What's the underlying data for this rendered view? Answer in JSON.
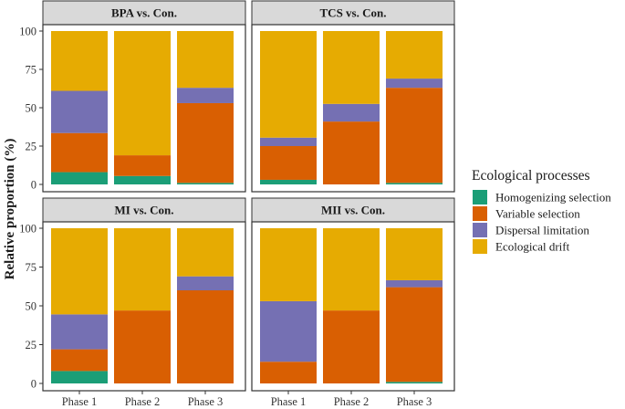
{
  "chart_data": {
    "type": "bar",
    "stacked": true,
    "ylabel": "Relative proportion (%)",
    "ylim": [
      0,
      100
    ],
    "yticks": [
      "0",
      "25",
      "50",
      "75",
      "100"
    ],
    "categories": [
      "Phase 1",
      "Phase 2",
      "Phase 3"
    ],
    "legend": {
      "title": "Ecological processes",
      "placement": "right",
      "entries": [
        {
          "name": "Homogenizing selection",
          "color": "#1b9e77"
        },
        {
          "name": "Variable selection",
          "color": "#d95f02"
        },
        {
          "name": "Dispersal limitation",
          "color": "#7570b3"
        },
        {
          "name": "Ecological drift",
          "color": "#e6ab02"
        }
      ]
    },
    "panels": [
      {
        "title": "BPA vs. Con.",
        "series": [
          {
            "name": "Homogenizing selection",
            "values": [
              8,
              5.5,
              1
            ]
          },
          {
            "name": "Variable selection",
            "values": [
              25.5,
              13.5,
              52
            ]
          },
          {
            "name": "Dispersal limitation",
            "values": [
              27.5,
              0,
              10
            ]
          },
          {
            "name": "Ecological drift",
            "values": [
              39,
              81,
              37
            ]
          }
        ]
      },
      {
        "title": "TCS vs. Con.",
        "series": [
          {
            "name": "Homogenizing selection",
            "values": [
              3,
              0,
              1
            ]
          },
          {
            "name": "Variable selection",
            "values": [
              22,
              41,
              62
            ]
          },
          {
            "name": "Dispersal limitation",
            "values": [
              5.5,
              11.5,
              6
            ]
          },
          {
            "name": "Ecological drift",
            "values": [
              69.5,
              47.5,
              31
            ]
          }
        ]
      },
      {
        "title": "MI vs. Con.",
        "series": [
          {
            "name": "Homogenizing selection",
            "values": [
              8,
              0,
              0
            ]
          },
          {
            "name": "Variable selection",
            "values": [
              14,
              47,
              60
            ]
          },
          {
            "name": "Dispersal limitation",
            "values": [
              22.5,
              0,
              9
            ]
          },
          {
            "name": "Ecological drift",
            "values": [
              55.5,
              53,
              31
            ]
          }
        ]
      },
      {
        "title": "MII vs. Con.",
        "series": [
          {
            "name": "Homogenizing selection",
            "values": [
              0,
              0,
              1
            ]
          },
          {
            "name": "Variable selection",
            "values": [
              14,
              47,
              61
            ]
          },
          {
            "name": "Dispersal limitation",
            "values": [
              39,
              0,
              4.5
            ]
          },
          {
            "name": "Ecological drift",
            "values": [
              47,
              53,
              33.5
            ]
          }
        ]
      }
    ]
  }
}
